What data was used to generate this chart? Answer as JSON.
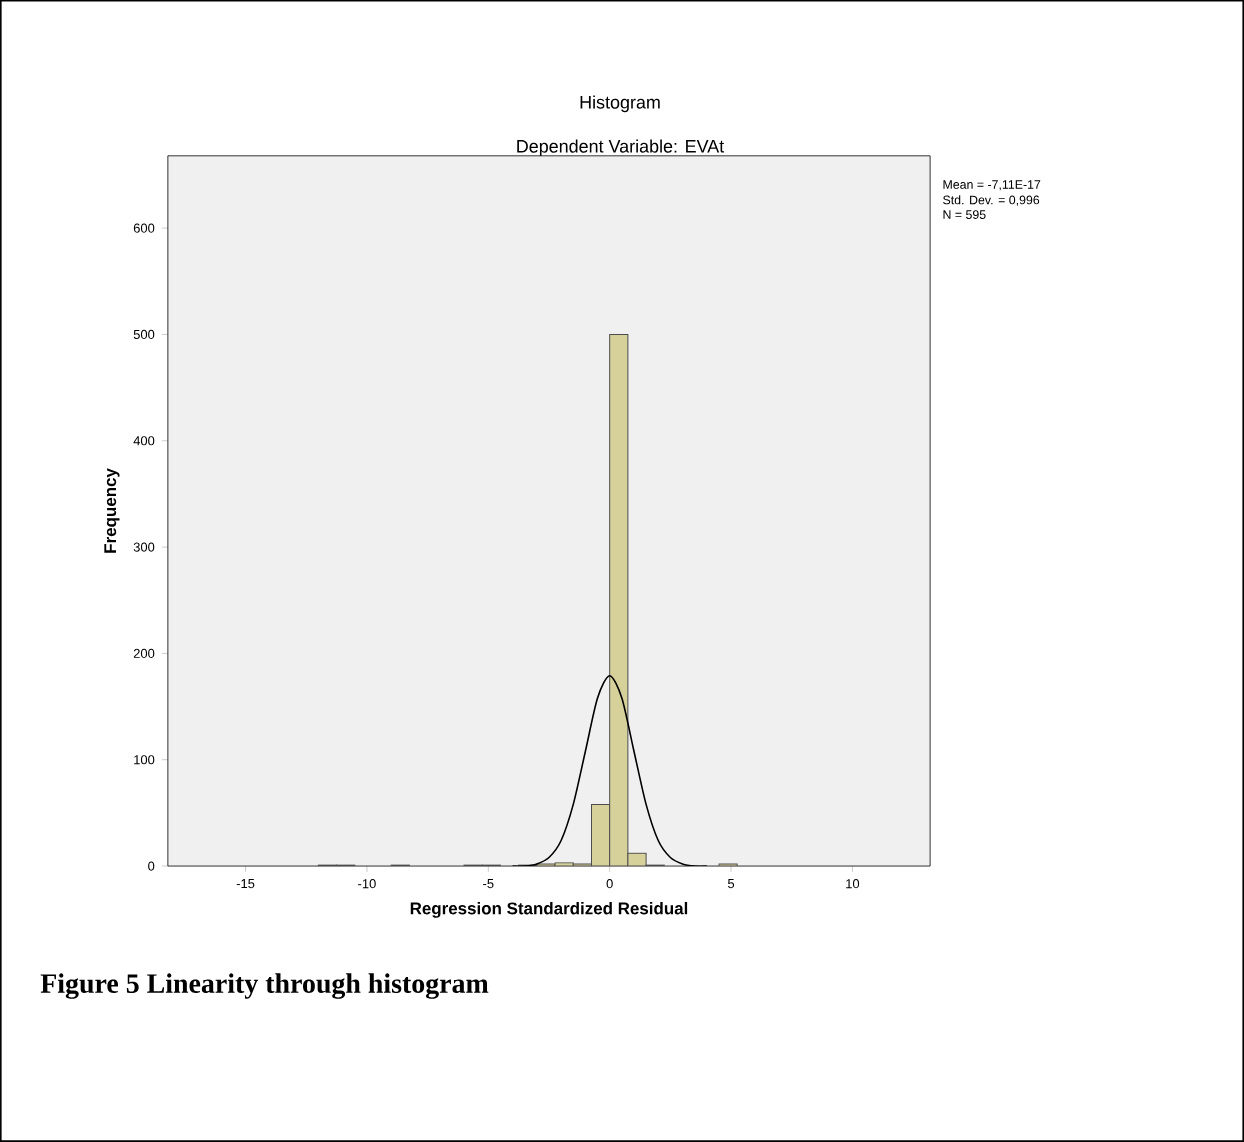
{
  "chart_data": {
    "type": "histogram",
    "title": "Histogram",
    "subtitle": "Dependent Variable: EVAt",
    "xlabel": "Regression Standardized Residual",
    "ylabel": "Frequency",
    "bins": [
      -12,
      -11.25,
      -10.5,
      -9.75,
      -9,
      -8.25,
      -7.5,
      -6.75,
      -6,
      -5.25,
      -4.5,
      -3.75,
      -3,
      -2.25,
      -1.5,
      -0.75,
      0,
      0.75,
      1.5,
      2.25,
      3,
      3.75,
      4.5,
      5.25
    ],
    "values": [
      1,
      1,
      0,
      0,
      1,
      0,
      0,
      0,
      1,
      1,
      0,
      1,
      2,
      3,
      2,
      58,
      500,
      12,
      1,
      0,
      0,
      0,
      2
    ],
    "color": "#d6d19b",
    "series": [
      {
        "type": "line",
        "color": "#000000",
        "x": [
          -4,
          -3.5,
          -3,
          -2.5,
          -2,
          -1.5,
          -1,
          -0.5,
          0,
          0.5,
          1,
          1.5,
          2,
          2.5,
          3,
          3.5,
          4
        ],
        "values": [
          0,
          0,
          2,
          8,
          24,
          58,
          108,
          158,
          179,
          158,
          108,
          58,
          24,
          8,
          2,
          0,
          0
        ]
      }
    ],
    "xlim": [
      -18.2,
      13.2
    ],
    "ylim": [
      0,
      668
    ],
    "xticks": [
      -15,
      -10,
      -5,
      0,
      5,
      10
    ],
    "yticks": [
      0,
      100,
      200,
      300,
      400,
      500,
      600
    ],
    "grid": false,
    "marker": "none",
    "annotations": [
      "Mean = -7,11E-17",
      "Std. Dev. = 0,996",
      "N = 595",
      "Figure 5 Linearity through histogram"
    ]
  }
}
